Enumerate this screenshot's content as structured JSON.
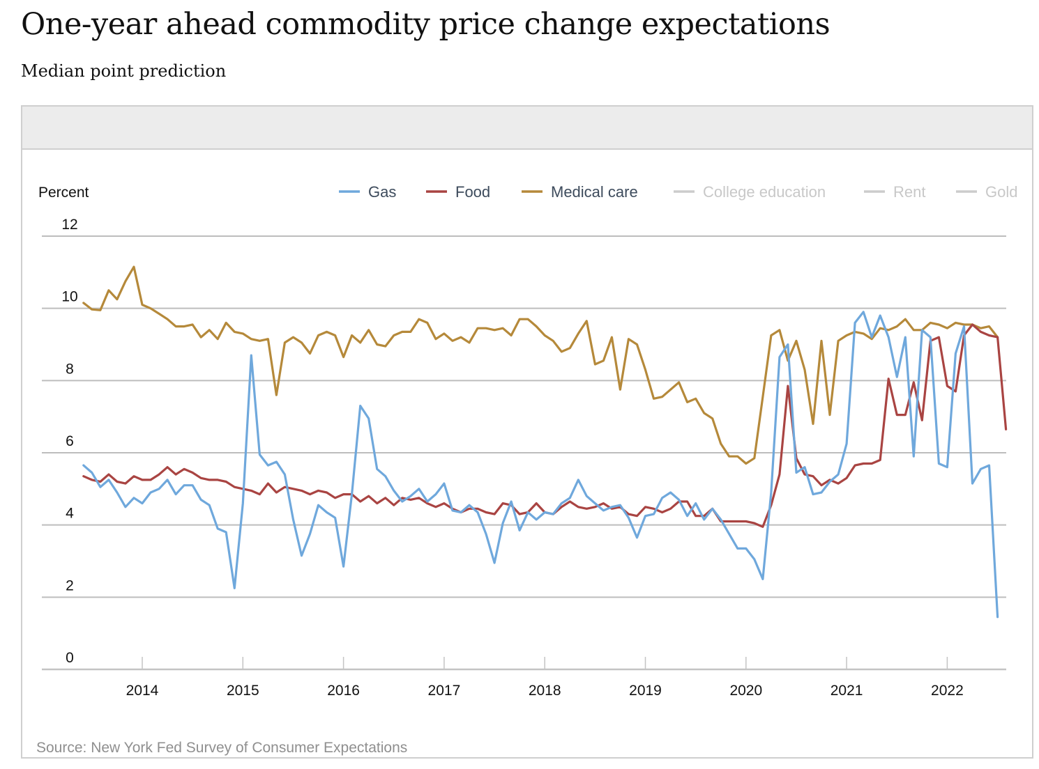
{
  "header": {
    "title": "One-year ahead commodity price change expectations",
    "subtitle": "Median point prediction"
  },
  "source": "Source: New York Fed Survey of Consumer Expectations",
  "chart_data": {
    "type": "line",
    "title": "One-year ahead commodity price change expectations",
    "subtitle": "Median point prediction",
    "ylabel": "Percent",
    "xlabel": "",
    "ylim": [
      0,
      12
    ],
    "yticks": [
      "0",
      "2",
      "4",
      "6",
      "8",
      "10",
      "12"
    ],
    "xticks": [
      "2014",
      "2015",
      "2016",
      "2017",
      "2018",
      "2019",
      "2020",
      "2021",
      "2022"
    ],
    "x_start": "2013-06",
    "x_frequency": "monthly",
    "x_range": [
      "2013-06",
      "2022-07"
    ],
    "grid": true,
    "legend_position": "top-right",
    "legend": [
      {
        "name": "Gas",
        "color": "#6fa8dc",
        "active": true
      },
      {
        "name": "Food",
        "color": "#a94442",
        "active": true
      },
      {
        "name": "Medical care",
        "color": "#b5893a",
        "active": true
      },
      {
        "name": "College education",
        "color": "#cccccc",
        "active": false
      },
      {
        "name": "Rent",
        "color": "#cccccc",
        "active": false
      },
      {
        "name": "Gold",
        "color": "#cccccc",
        "active": false
      }
    ],
    "legend_active_text_color": "#3d4b5c",
    "legend_inactive_text_color": "#c8c8c8",
    "series": [
      {
        "name": "Gas",
        "color": "#6fa8dc",
        "values": [
          5.65,
          5.45,
          5.05,
          5.25,
          4.9,
          4.5,
          4.75,
          4.6,
          4.9,
          5.0,
          5.25,
          4.85,
          5.1,
          5.1,
          4.7,
          4.55,
          3.9,
          3.8,
          2.25,
          4.6,
          8.7,
          5.95,
          5.65,
          5.75,
          5.4,
          4.15,
          3.15,
          3.75,
          4.55,
          4.35,
          4.2,
          2.85,
          4.85,
          7.3,
          6.95,
          5.55,
          5.35,
          4.95,
          4.65,
          4.8,
          5.0,
          4.65,
          4.85,
          5.15,
          4.4,
          4.35,
          4.55,
          4.35,
          3.75,
          2.95,
          4.05,
          4.65,
          3.85,
          4.35,
          4.15,
          4.35,
          4.3,
          4.6,
          4.75,
          5.25,
          4.8,
          4.6,
          4.4,
          4.5,
          4.55,
          4.2,
          3.65,
          4.25,
          4.3,
          4.75,
          4.9,
          4.7,
          4.25,
          4.6,
          4.15,
          4.45,
          4.15,
          3.75,
          3.35,
          3.35,
          3.05,
          2.5,
          4.9,
          8.65,
          9.0,
          5.45,
          5.6,
          4.85,
          4.9,
          5.2,
          5.4,
          6.25,
          9.6,
          9.9,
          9.2,
          9.8,
          9.2,
          8.1,
          9.2,
          5.9,
          9.4,
          9.2,
          5.7,
          5.6,
          8.75,
          9.5,
          5.15,
          5.55,
          5.65,
          1.45
        ]
      },
      {
        "name": "Food",
        "color": "#a94442",
        "values": [
          5.35,
          5.25,
          5.2,
          5.4,
          5.2,
          5.15,
          5.35,
          5.25,
          5.25,
          5.4,
          5.6,
          5.4,
          5.55,
          5.45,
          5.3,
          5.25,
          5.25,
          5.2,
          5.05,
          5.0,
          4.95,
          4.85,
          5.15,
          4.9,
          5.05,
          5.0,
          4.95,
          4.85,
          4.95,
          4.9,
          4.75,
          4.85,
          4.85,
          4.65,
          4.8,
          4.6,
          4.75,
          4.55,
          4.75,
          4.7,
          4.75,
          4.6,
          4.5,
          4.6,
          4.45,
          4.35,
          4.45,
          4.45,
          4.35,
          4.3,
          4.6,
          4.55,
          4.3,
          4.35,
          4.6,
          4.35,
          4.3,
          4.5,
          4.65,
          4.5,
          4.45,
          4.5,
          4.6,
          4.45,
          4.5,
          4.3,
          4.25,
          4.5,
          4.45,
          4.35,
          4.45,
          4.65,
          4.65,
          4.25,
          4.25,
          4.45,
          4.1,
          4.1,
          4.1,
          4.1,
          4.05,
          3.95,
          4.55,
          5.4,
          7.85,
          5.85,
          5.4,
          5.35,
          5.1,
          5.25,
          5.15,
          5.3,
          5.65,
          5.7,
          5.7,
          5.8,
          8.05,
          7.05,
          7.05,
          7.95,
          6.9,
          9.1,
          9.2,
          7.85,
          7.7,
          9.25,
          9.55,
          9.35,
          9.25,
          9.2,
          6.65
        ]
      },
      {
        "name": "Medical care",
        "color": "#b5893a",
        "values": [
          10.15,
          9.97,
          9.95,
          10.5,
          10.25,
          10.75,
          11.15,
          10.1,
          10.0,
          9.85,
          9.7,
          9.5,
          9.5,
          9.55,
          9.2,
          9.4,
          9.15,
          9.6,
          9.35,
          9.3,
          9.15,
          9.1,
          9.15,
          7.6,
          9.05,
          9.2,
          9.05,
          8.75,
          9.25,
          9.35,
          9.25,
          8.65,
          9.25,
          9.05,
          9.4,
          9.0,
          8.95,
          9.25,
          9.35,
          9.35,
          9.7,
          9.6,
          9.15,
          9.3,
          9.1,
          9.2,
          9.05,
          9.45,
          9.45,
          9.4,
          9.45,
          9.25,
          9.7,
          9.7,
          9.5,
          9.25,
          9.1,
          8.8,
          8.9,
          9.3,
          9.65,
          8.45,
          8.55,
          9.2,
          7.75,
          9.15,
          9.0,
          8.3,
          7.5,
          7.55,
          7.75,
          7.95,
          7.4,
          7.5,
          7.1,
          6.95,
          6.25,
          5.9,
          5.9,
          5.7,
          5.85,
          7.55,
          9.25,
          9.4,
          8.55,
          9.1,
          8.3,
          6.8,
          9.1,
          7.05,
          9.1,
          9.25,
          9.35,
          9.3,
          9.15,
          9.45,
          9.4,
          9.5,
          9.7,
          9.4,
          9.4,
          9.6,
          9.55,
          9.45,
          9.6,
          9.55,
          9.55,
          9.45,
          9.5,
          9.2
        ]
      }
    ]
  }
}
